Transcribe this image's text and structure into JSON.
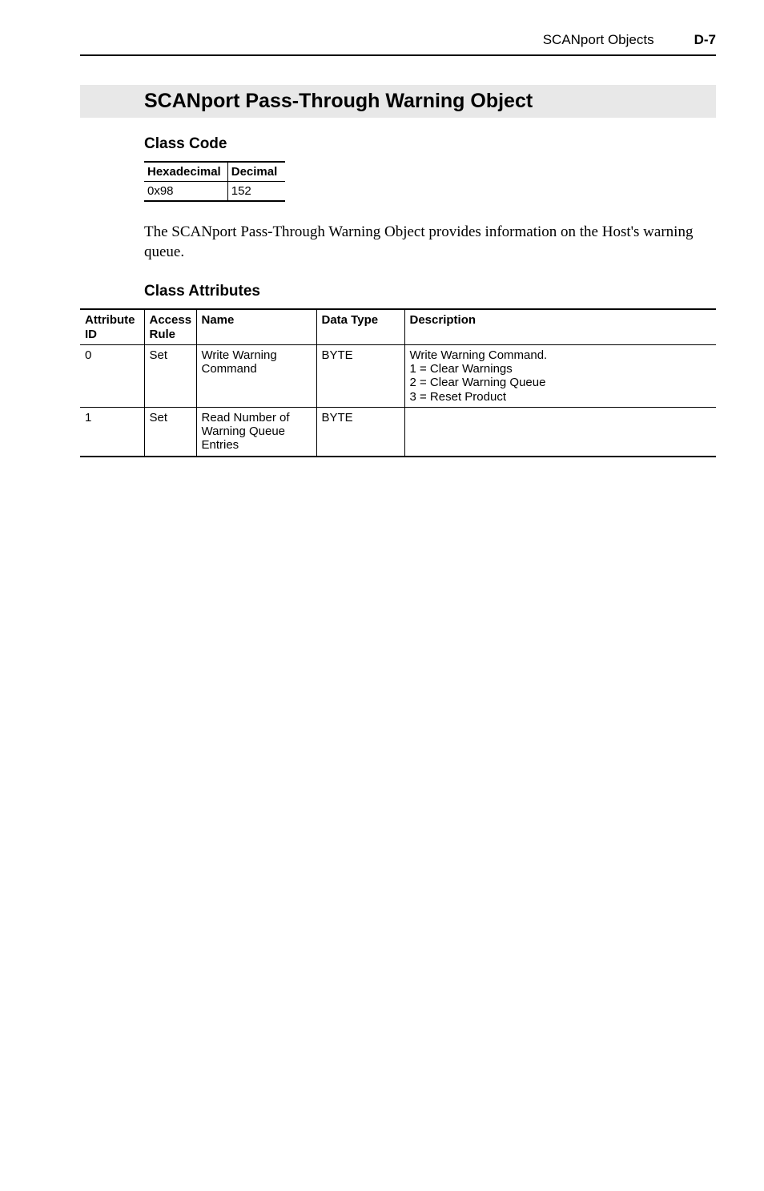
{
  "header": {
    "running_title": "SCANport Objects",
    "page_label": "D-7"
  },
  "section": {
    "title": "SCANport Pass-Through Warning Object"
  },
  "class_code": {
    "heading": "Class Code",
    "columns": [
      "Hexadecimal",
      "Decimal"
    ],
    "row": [
      "0x98",
      "152"
    ]
  },
  "body_paragraph": "The SCANport Pass-Through Warning Object provides information on the Host's warning queue.",
  "class_attributes": {
    "heading": "Class Attributes",
    "columns": {
      "attribute_id": "Attribute ID",
      "access_rule": "Access Rule",
      "name": "Name",
      "data_type": "Data Type",
      "description": "Description"
    },
    "rows": [
      {
        "attribute_id": "0",
        "access_rule": "Set",
        "name": "Write Warning Command",
        "data_type": "BYTE",
        "description": "Write Warning Command.\n1 = Clear Warnings\n2 = Clear Warning Queue\n3 = Reset Product"
      },
      {
        "attribute_id": "1",
        "access_rule": "Set",
        "name": "Read Number of Warning Queue Entries",
        "data_type": "BYTE",
        "description": ""
      }
    ]
  }
}
